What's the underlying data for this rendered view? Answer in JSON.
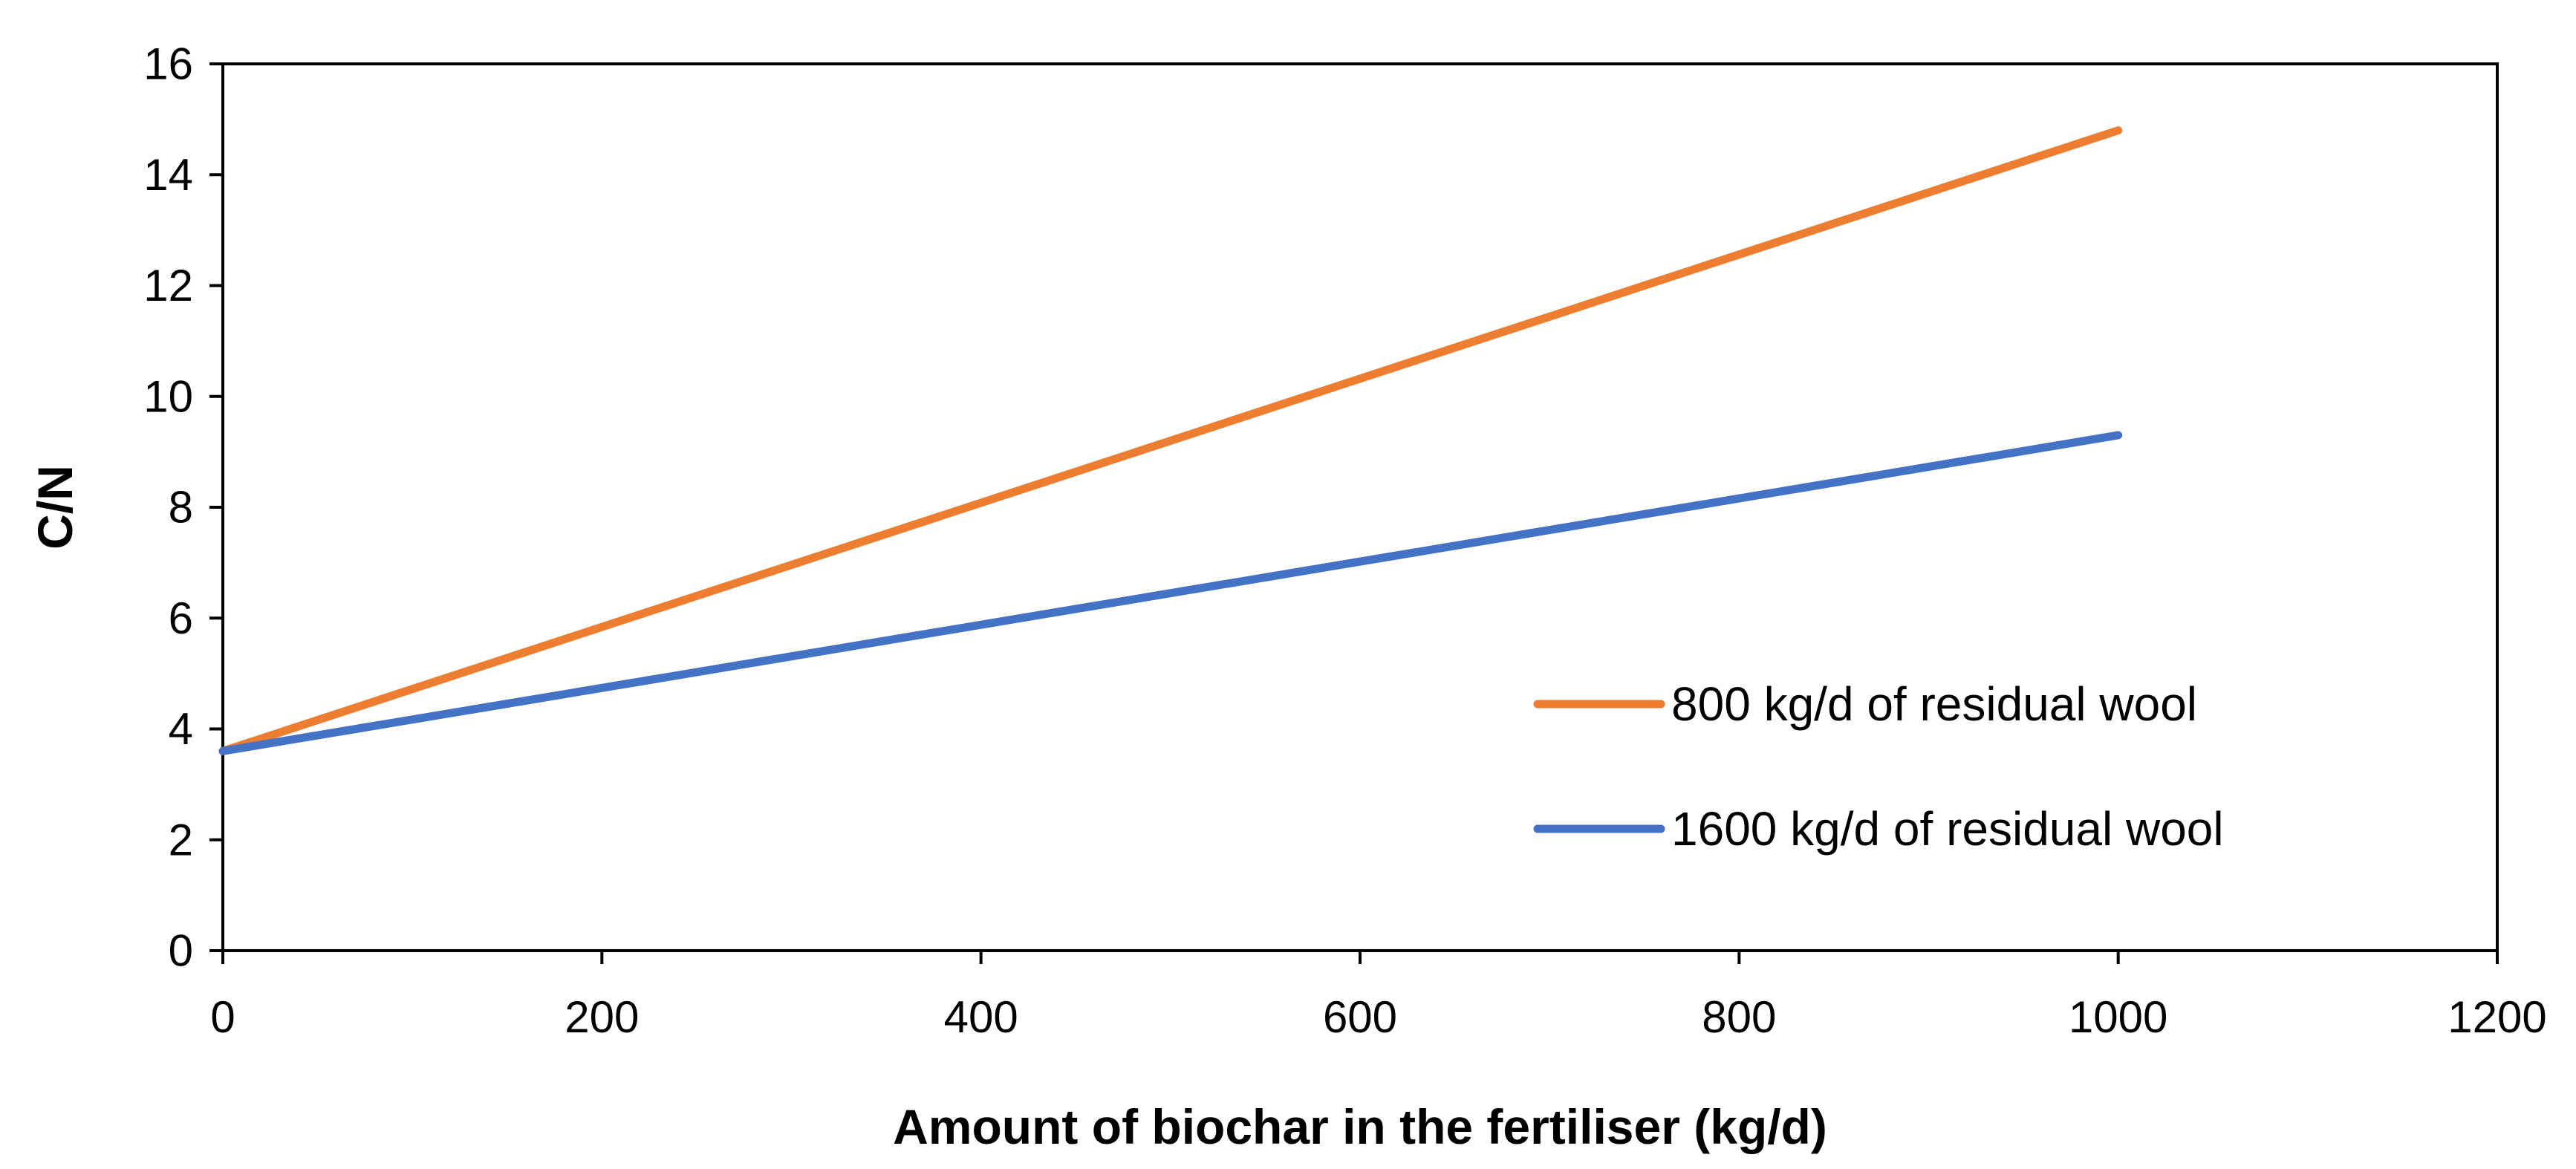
{
  "chart_data": {
    "type": "line",
    "title": "",
    "xlabel": "Amount of biochar in the fertiliser (kg/d)",
    "ylabel": "C/N",
    "xlim": [
      0,
      1200
    ],
    "ylim": [
      0,
      16
    ],
    "xticks": [
      0,
      200,
      400,
      600,
      800,
      1000,
      1200
    ],
    "yticks": [
      0,
      2,
      4,
      6,
      8,
      10,
      12,
      14,
      16
    ],
    "grid": false,
    "legend_position": "right",
    "series": [
      {
        "name": "800 kg/d of residual wool",
        "color": "#ED7D31",
        "x": [
          0,
          1000
        ],
        "y": [
          3.6,
          14.8
        ]
      },
      {
        "name": "1600 kg/d of residual wool",
        "color": "#4472C4",
        "x": [
          0,
          1000
        ],
        "y": [
          3.6,
          9.3
        ]
      }
    ]
  }
}
